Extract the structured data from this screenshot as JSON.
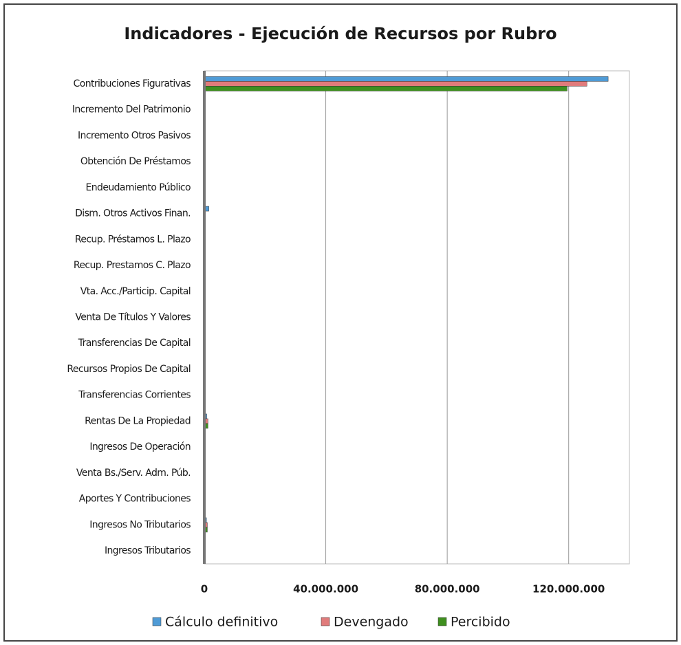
{
  "chart_data": {
    "type": "bar",
    "orientation": "horizontal",
    "title": "Indicadores - Ejecución de Recursos por Rubro",
    "categories": [
      "Contribuciones Figurativas",
      "Incremento Del Patrimonio",
      "Incremento Otros Pasivos",
      "Obtención De Préstamos",
      "Endeudamiento Público",
      "Dism. Otros Activos Finan.",
      "Recup. Préstamos L. Plazo",
      "Recup. Prestamos C. Plazo",
      "Vta. Acc./Particip. Capital",
      "Venta De Títulos Y Valores",
      "Transferencias De Capital",
      "Recursos Propios De Capital",
      "Transferencias Corrientes",
      "Rentas De La Propiedad",
      "Ingresos De Operación",
      "Venta Bs./Serv. Adm. Púb.",
      "Aportes Y Contribuciones",
      "Ingresos No Tributarios",
      "Ingresos Tributarios"
    ],
    "series": [
      {
        "name": "Cálculo definitivo",
        "color": "#4f9bd6",
        "values": [
          133000000,
          0,
          0,
          0,
          0,
          1500000,
          0,
          0,
          0,
          0,
          0,
          0,
          0,
          800000,
          0,
          0,
          0,
          700000,
          0
        ]
      },
      {
        "name": "Devengado",
        "color": "#e07b7b",
        "values": [
          126000000,
          0,
          0,
          0,
          0,
          300000,
          0,
          0,
          0,
          0,
          0,
          0,
          0,
          1200000,
          0,
          0,
          0,
          1000000,
          0
        ]
      },
      {
        "name": "Percibido",
        "color": "#3f8f1f",
        "values": [
          119500000,
          0,
          0,
          0,
          0,
          300000,
          0,
          0,
          0,
          0,
          0,
          0,
          0,
          1200000,
          0,
          0,
          0,
          1000000,
          0
        ]
      }
    ],
    "xlim": [
      0,
      140000000
    ],
    "xticks": [
      0,
      {
        "value": 40000000,
        "label": "40.000.000"
      },
      {
        "value": 80000000,
        "label": "80.000.000"
      },
      {
        "value": 120000000,
        "label": "120.000.000"
      }
    ],
    "grid": true,
    "legend": "bottom"
  }
}
